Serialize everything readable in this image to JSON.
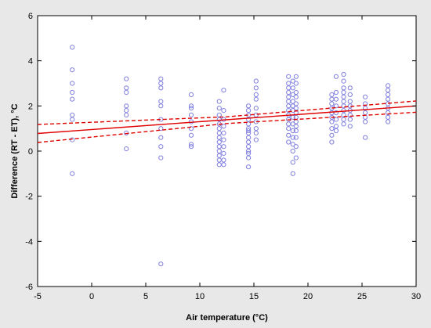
{
  "chart_data": {
    "type": "scatter",
    "title": "",
    "xlabel": "Air temperature (°C)",
    "ylabel": "Difference (RT - ET), °C",
    "xlim": [
      -5,
      30
    ],
    "ylim": [
      -6,
      6
    ],
    "xticks": [
      -5,
      0,
      5,
      10,
      15,
      20,
      25,
      30
    ],
    "yticks": [
      -6,
      -4,
      -2,
      0,
      2,
      4,
      6
    ],
    "grid": false,
    "legend": "none",
    "colors": {
      "points": "#8080e0",
      "fit": "#e00000",
      "band": "#e00000",
      "plot_bg": "#ffffff",
      "page_bg": "#e8e8e8"
    },
    "points": [
      [
        -1.8,
        4.6
      ],
      [
        -1.8,
        3.6
      ],
      [
        -1.8,
        3.0
      ],
      [
        -1.8,
        2.6
      ],
      [
        -1.8,
        2.3
      ],
      [
        -1.8,
        1.6
      ],
      [
        -1.8,
        1.4
      ],
      [
        -1.8,
        0.5
      ],
      [
        -1.8,
        -1.0
      ],
      [
        3.2,
        3.2
      ],
      [
        3.2,
        2.8
      ],
      [
        3.2,
        2.6
      ],
      [
        3.2,
        2.0
      ],
      [
        3.2,
        1.8
      ],
      [
        3.2,
        1.6
      ],
      [
        3.2,
        0.8
      ],
      [
        3.2,
        0.1
      ],
      [
        6.4,
        3.2
      ],
      [
        6.4,
        3.0
      ],
      [
        6.4,
        2.8
      ],
      [
        6.4,
        2.2
      ],
      [
        6.4,
        2.0
      ],
      [
        6.4,
        1.4
      ],
      [
        6.4,
        1.0
      ],
      [
        6.4,
        0.6
      ],
      [
        6.4,
        0.2
      ],
      [
        6.4,
        -0.3
      ],
      [
        6.4,
        -5.0
      ],
      [
        9.2,
        2.5
      ],
      [
        9.2,
        2.0
      ],
      [
        9.2,
        1.9
      ],
      [
        9.2,
        1.6
      ],
      [
        9.2,
        1.3
      ],
      [
        9.2,
        1.0
      ],
      [
        9.2,
        0.7
      ],
      [
        9.2,
        0.3
      ],
      [
        9.2,
        0.2
      ],
      [
        11.8,
        2.2
      ],
      [
        11.8,
        1.9
      ],
      [
        11.8,
        1.6
      ],
      [
        11.8,
        1.4
      ],
      [
        11.8,
        1.2
      ],
      [
        11.8,
        1.0
      ],
      [
        11.8,
        0.8
      ],
      [
        11.8,
        0.6
      ],
      [
        11.8,
        0.4
      ],
      [
        11.8,
        0.2
      ],
      [
        11.8,
        0.0
      ],
      [
        11.8,
        -0.2
      ],
      [
        11.8,
        -0.4
      ],
      [
        11.8,
        -0.6
      ],
      [
        12.2,
        2.7
      ],
      [
        12.2,
        1.8
      ],
      [
        12.2,
        1.4
      ],
      [
        12.2,
        1.1
      ],
      [
        12.2,
        0.8
      ],
      [
        12.2,
        0.5
      ],
      [
        12.2,
        0.2
      ],
      [
        12.2,
        -0.1
      ],
      [
        12.2,
        -0.4
      ],
      [
        12.2,
        -0.6
      ],
      [
        14.5,
        2.0
      ],
      [
        14.5,
        1.8
      ],
      [
        14.5,
        1.6
      ],
      [
        14.5,
        1.4
      ],
      [
        14.5,
        1.2
      ],
      [
        14.5,
        1.0
      ],
      [
        14.5,
        0.9
      ],
      [
        14.5,
        0.8
      ],
      [
        14.5,
        0.6
      ],
      [
        14.5,
        0.4
      ],
      [
        14.5,
        0.2
      ],
      [
        14.5,
        0.0
      ],
      [
        14.5,
        -0.1
      ],
      [
        14.5,
        -0.3
      ],
      [
        14.5,
        -0.7
      ],
      [
        15.2,
        3.1
      ],
      [
        15.2,
        2.8
      ],
      [
        15.2,
        2.5
      ],
      [
        15.2,
        2.3
      ],
      [
        15.2,
        1.9
      ],
      [
        15.2,
        1.6
      ],
      [
        15.2,
        1.3
      ],
      [
        15.2,
        1.0
      ],
      [
        15.2,
        0.8
      ],
      [
        15.2,
        0.5
      ],
      [
        18.2,
        3.3
      ],
      [
        18.2,
        3.0
      ],
      [
        18.2,
        2.8
      ],
      [
        18.2,
        2.6
      ],
      [
        18.2,
        2.4
      ],
      [
        18.2,
        2.2
      ],
      [
        18.2,
        2.0
      ],
      [
        18.2,
        1.8
      ],
      [
        18.2,
        1.6
      ],
      [
        18.2,
        1.4
      ],
      [
        18.2,
        1.2
      ],
      [
        18.2,
        1.0
      ],
      [
        18.2,
        0.7
      ],
      [
        18.2,
        0.4
      ],
      [
        18.6,
        3.1
      ],
      [
        18.6,
        2.8
      ],
      [
        18.6,
        2.5
      ],
      [
        18.6,
        2.2
      ],
      [
        18.6,
        2.0
      ],
      [
        18.6,
        1.8
      ],
      [
        18.6,
        1.5
      ],
      [
        18.6,
        1.2
      ],
      [
        18.6,
        0.9
      ],
      [
        18.6,
        0.6
      ],
      [
        18.6,
        0.3
      ],
      [
        18.6,
        0.0
      ],
      [
        18.6,
        -0.5
      ],
      [
        18.6,
        -1.0
      ],
      [
        18.9,
        3.3
      ],
      [
        18.9,
        3.0
      ],
      [
        18.9,
        2.6
      ],
      [
        18.9,
        2.4
      ],
      [
        18.9,
        2.1
      ],
      [
        18.9,
        1.9
      ],
      [
        18.9,
        1.7
      ],
      [
        18.9,
        1.5
      ],
      [
        18.9,
        1.3
      ],
      [
        18.9,
        1.1
      ],
      [
        18.9,
        0.9
      ],
      [
        18.9,
        0.6
      ],
      [
        18.9,
        0.2
      ],
      [
        18.9,
        -0.3
      ],
      [
        22.2,
        2.5
      ],
      [
        22.2,
        2.3
      ],
      [
        22.2,
        2.1
      ],
      [
        22.2,
        1.9
      ],
      [
        22.2,
        1.7
      ],
      [
        22.2,
        1.5
      ],
      [
        22.2,
        1.3
      ],
      [
        22.2,
        1.0
      ],
      [
        22.2,
        0.7
      ],
      [
        22.2,
        0.4
      ],
      [
        22.6,
        3.3
      ],
      [
        22.6,
        2.6
      ],
      [
        22.6,
        2.3
      ],
      [
        22.6,
        2.0
      ],
      [
        22.6,
        1.7
      ],
      [
        22.6,
        1.4
      ],
      [
        22.6,
        1.1
      ],
      [
        22.6,
        0.9
      ],
      [
        23.3,
        3.4
      ],
      [
        23.3,
        3.1
      ],
      [
        23.3,
        2.8
      ],
      [
        23.3,
        2.6
      ],
      [
        23.3,
        2.4
      ],
      [
        23.3,
        2.2
      ],
      [
        23.3,
        2.0
      ],
      [
        23.3,
        1.8
      ],
      [
        23.3,
        1.6
      ],
      [
        23.3,
        1.4
      ],
      [
        23.3,
        1.2
      ],
      [
        23.9,
        2.8
      ],
      [
        23.9,
        2.5
      ],
      [
        23.9,
        2.2
      ],
      [
        23.9,
        2.0
      ],
      [
        23.9,
        1.8
      ],
      [
        23.9,
        1.6
      ],
      [
        23.9,
        1.4
      ],
      [
        23.9,
        1.1
      ],
      [
        25.3,
        2.4
      ],
      [
        25.3,
        2.1
      ],
      [
        25.3,
        1.9
      ],
      [
        25.3,
        1.7
      ],
      [
        25.3,
        1.5
      ],
      [
        25.3,
        1.3
      ],
      [
        25.3,
        0.6
      ],
      [
        27.4,
        2.9
      ],
      [
        27.4,
        2.7
      ],
      [
        27.4,
        2.5
      ],
      [
        27.4,
        2.3
      ],
      [
        27.4,
        2.1
      ],
      [
        27.4,
        1.9
      ],
      [
        27.4,
        1.7
      ],
      [
        27.4,
        1.5
      ],
      [
        27.4,
        1.3
      ]
    ],
    "fit_line": {
      "x": [
        -5,
        30
      ],
      "y": [
        0.78,
        2.0
      ]
    },
    "confidence_upper": {
      "x": [
        -5,
        12.5,
        30
      ],
      "y": [
        1.18,
        1.52,
        2.22
      ]
    },
    "confidence_lower": {
      "x": [
        -5,
        12.5,
        30
      ],
      "y": [
        0.38,
        1.22,
        1.72
      ]
    }
  }
}
